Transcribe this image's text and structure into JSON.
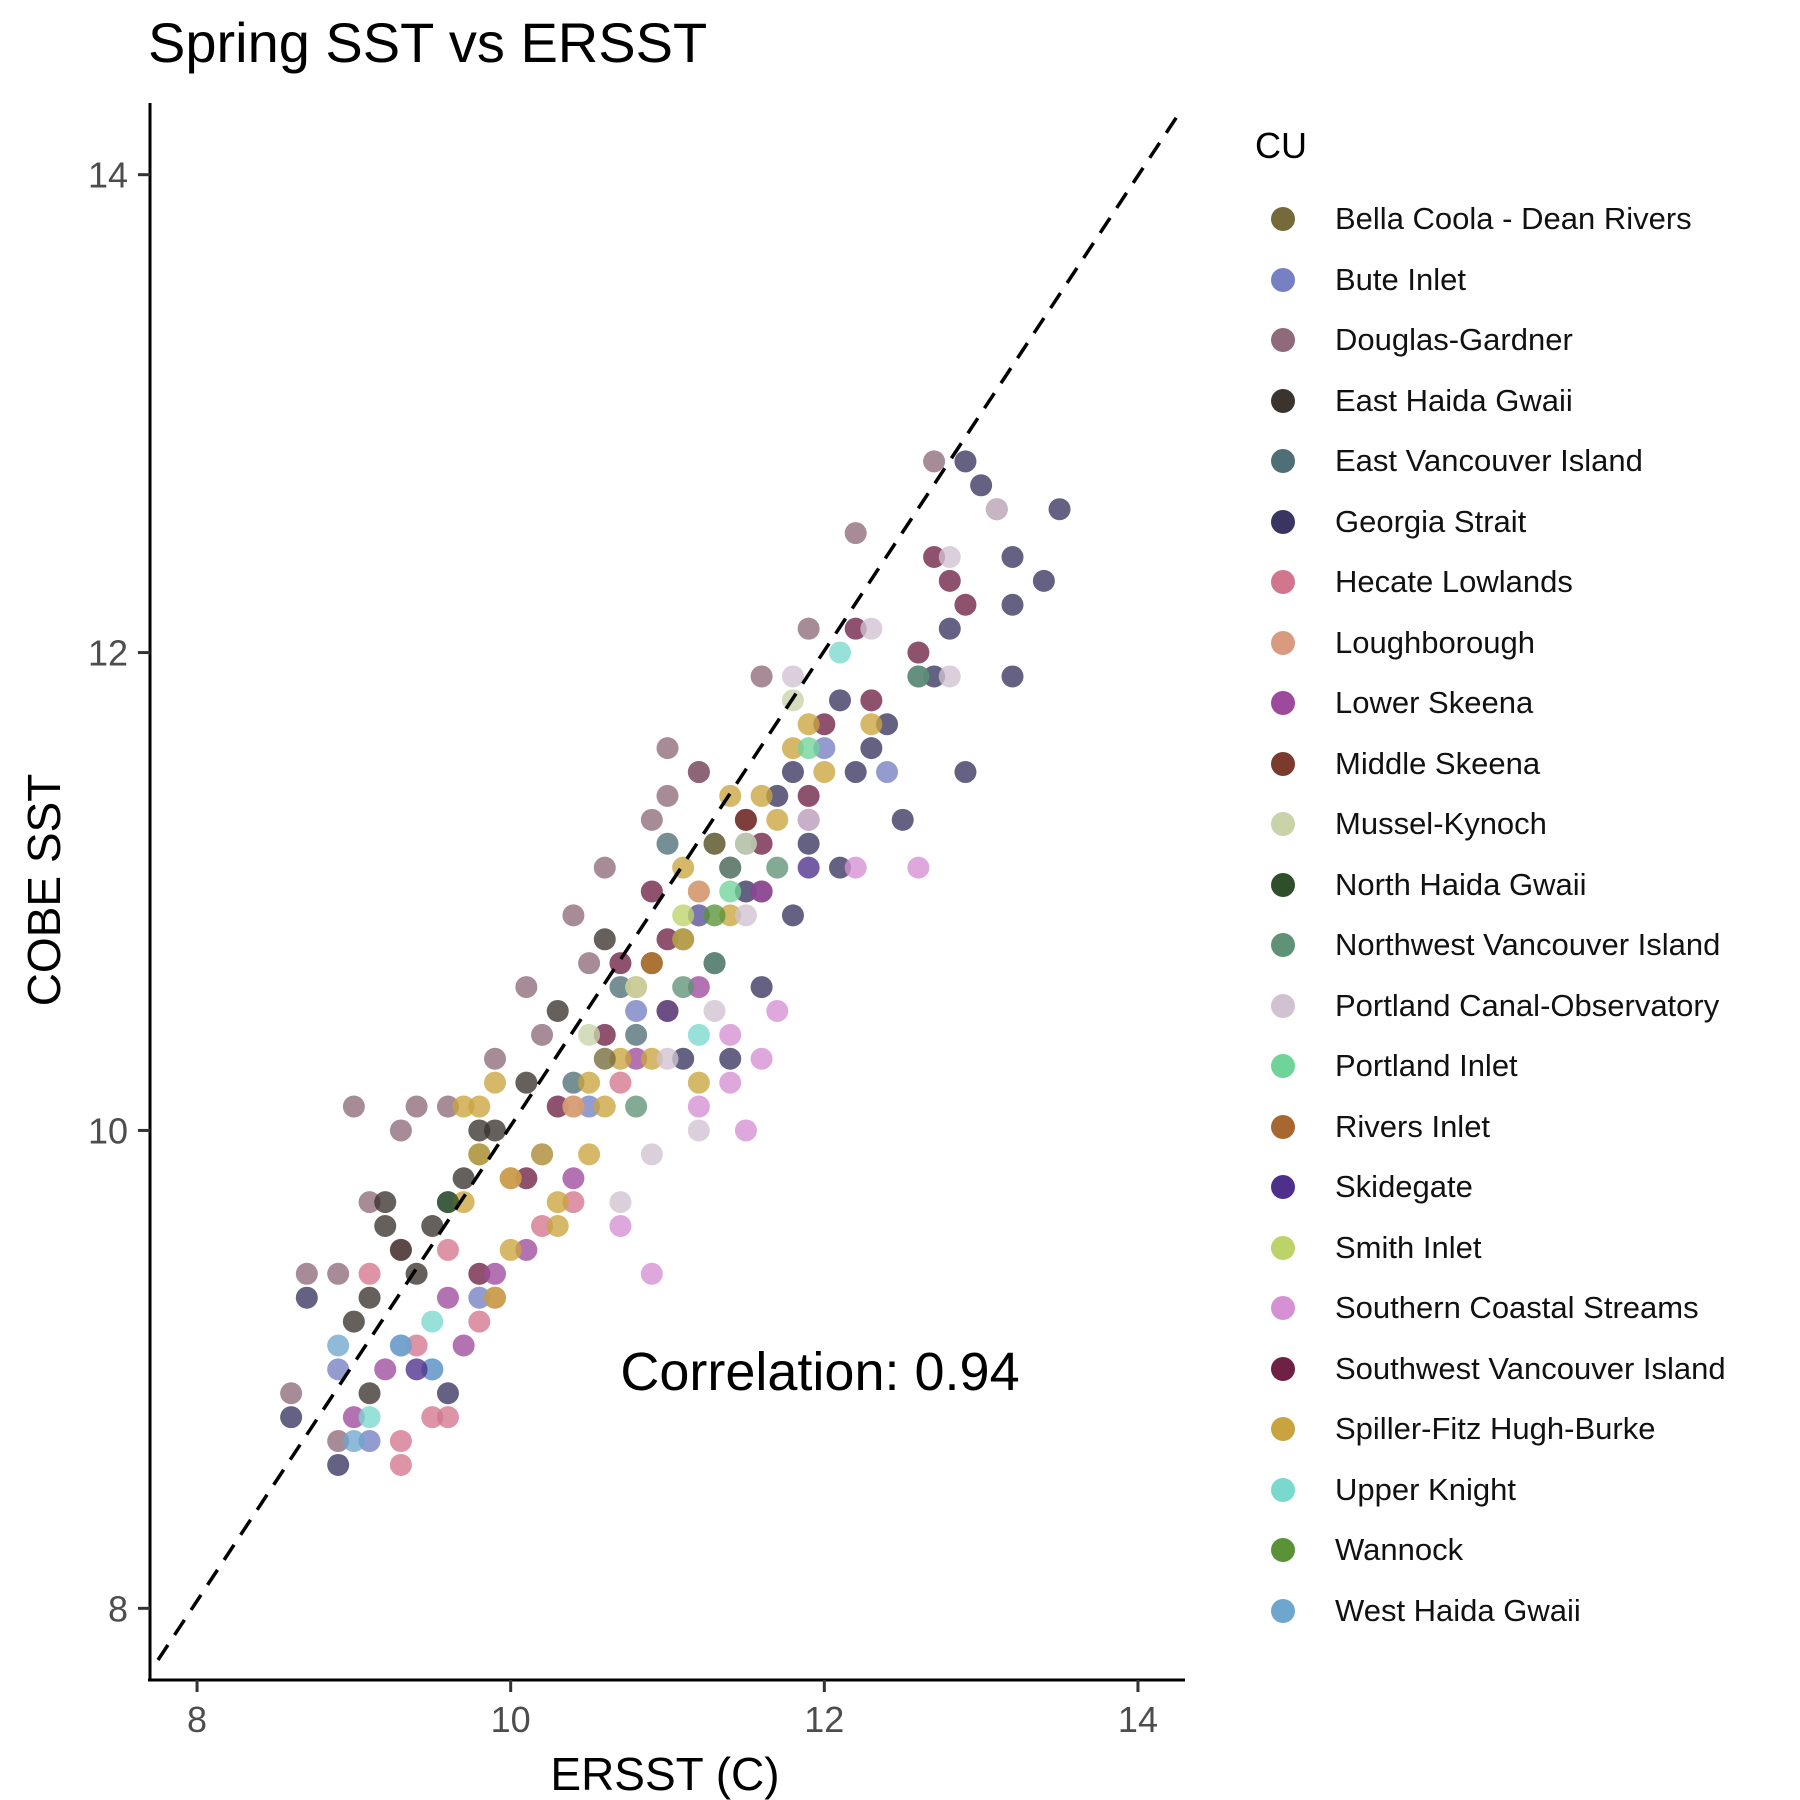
{
  "title": "Spring SST vs ERSST",
  "annotation": "Correlation: 0.94",
  "legend": {
    "title": "CU",
    "items": [
      {
        "label": "Bella Coola - Dean Rivers",
        "color": "#756a3a"
      },
      {
        "label": "Bute Inlet",
        "color": "#7680c2"
      },
      {
        "label": "Douglas-Gardner",
        "color": "#8e6a7a"
      },
      {
        "label": "East Haida Gwaii",
        "color": "#3a332e"
      },
      {
        "label": "East Vancouver Island",
        "color": "#4e6f76"
      },
      {
        "label": "Georgia Strait",
        "color": "#393560"
      },
      {
        "label": "Hecate Lowlands",
        "color": "#d2768d"
      },
      {
        "label": "Loughborough",
        "color": "#d89b7f"
      },
      {
        "label": "Lower Skeena",
        "color": "#9e4a9c"
      },
      {
        "label": "Middle Skeena",
        "color": "#7a3a2e"
      },
      {
        "label": "Mussel-Kynoch",
        "color": "#c8d3a8"
      },
      {
        "label": "North Haida Gwaii",
        "color": "#2f4f2b"
      },
      {
        "label": "Northwest Vancouver Island",
        "color": "#5f9277"
      },
      {
        "label": "Portland Canal-Observatory",
        "color": "#d0c2d0"
      },
      {
        "label": "Portland Inlet",
        "color": "#6fd49a"
      },
      {
        "label": "Rivers Inlet",
        "color": "#a8672f"
      },
      {
        "label": "Skidegate",
        "color": "#4e2f8c"
      },
      {
        "label": "Smith Inlet",
        "color": "#bcd36a"
      },
      {
        "label": "Southern Coastal Streams",
        "color": "#d690d4"
      },
      {
        "label": "Southwest Vancouver Island",
        "color": "#6e2145"
      },
      {
        "label": "Spiller-Fitz Hugh-Burke",
        "color": "#c9a43e"
      },
      {
        "label": "Upper Knight",
        "color": "#7ad9cd"
      },
      {
        "label": "Wannock",
        "color": "#5a9337"
      },
      {
        "label": "West Haida Gwaii",
        "color": "#6fa6cd"
      }
    ]
  },
  "chart_data": {
    "type": "scatter",
    "title": "Spring SST vs ERSST",
    "xlabel": "ERSST (C)",
    "ylabel": "COBE SST",
    "xlim": [
      7.7,
      14.3
    ],
    "ylim": [
      7.7,
      14.3
    ],
    "xticks": [
      8,
      10,
      12,
      14
    ],
    "yticks": [
      8,
      10,
      12,
      14
    ],
    "grid": false,
    "legend_position": "right",
    "reference_line": {
      "type": "identity",
      "style": "dashed",
      "color": "#000000"
    },
    "annotation": "Correlation: 0.94",
    "correlation": 0.94,
    "series": [
      {
        "name": "Georgia Strait",
        "color": "#393560",
        "points": [
          [
            12.9,
            12.8
          ],
          [
            13.0,
            12.7
          ],
          [
            13.5,
            12.6
          ],
          [
            13.2,
            12.4
          ],
          [
            13.4,
            12.3
          ],
          [
            12.8,
            12.1
          ],
          [
            13.2,
            11.9
          ],
          [
            12.4,
            11.7
          ],
          [
            12.9,
            11.5
          ],
          [
            12.5,
            11.3
          ],
          [
            12.1,
            11.1
          ],
          [
            11.8,
            10.9
          ],
          [
            11.6,
            10.6
          ],
          [
            11.4,
            10.3
          ],
          [
            12.1,
            11.8
          ],
          [
            12.3,
            11.6
          ],
          [
            11.9,
            11.2
          ],
          [
            11.6,
            11.0
          ],
          [
            11.3,
            10.7
          ],
          [
            11.1,
            10.3
          ],
          [
            8.7,
            9.3
          ],
          [
            8.6,
            8.8
          ],
          [
            8.9,
            8.6
          ],
          [
            9.6,
            8.9
          ],
          [
            13.2,
            12.2
          ],
          [
            12.7,
            11.9
          ],
          [
            12.2,
            11.5
          ],
          [
            11.7,
            11.4
          ],
          [
            11.5,
            11.0
          ],
          [
            11.8,
            11.5
          ]
        ]
      },
      {
        "name": "Southwest Vancouver Island",
        "color": "#6e2145",
        "points": [
          [
            12.7,
            12.4
          ],
          [
            12.9,
            12.2
          ],
          [
            12.6,
            12.0
          ],
          [
            12.3,
            11.8
          ],
          [
            12.0,
            11.7
          ],
          [
            11.9,
            11.4
          ],
          [
            11.6,
            11.2
          ],
          [
            11.4,
            11.1
          ],
          [
            11.2,
            10.9
          ],
          [
            11.0,
            10.8
          ],
          [
            10.6,
            10.4
          ],
          [
            10.3,
            10.1
          ],
          [
            10.1,
            9.8
          ],
          [
            12.2,
            12.1
          ],
          [
            12.8,
            12.3
          ],
          [
            11.5,
            11.3
          ],
          [
            11.2,
            11.5
          ],
          [
            10.9,
            11.0
          ],
          [
            10.7,
            10.7
          ],
          [
            9.8,
            9.4
          ]
        ]
      },
      {
        "name": "Douglas-Gardner",
        "color": "#8e6a7a",
        "points": [
          [
            12.7,
            12.8
          ],
          [
            12.2,
            12.5
          ],
          [
            11.9,
            12.1
          ],
          [
            11.6,
            11.9
          ],
          [
            11.2,
            11.5
          ],
          [
            10.9,
            11.3
          ],
          [
            10.6,
            11.1
          ],
          [
            10.4,
            10.9
          ],
          [
            10.1,
            10.6
          ],
          [
            9.9,
            10.3
          ],
          [
            9.6,
            10.1
          ],
          [
            9.3,
            10.0
          ],
          [
            9.1,
            9.7
          ],
          [
            8.9,
            9.4
          ],
          [
            8.7,
            9.4
          ],
          [
            8.6,
            8.9
          ],
          [
            8.9,
            8.7
          ],
          [
            11.0,
            11.6
          ],
          [
            11.0,
            11.4
          ],
          [
            10.5,
            10.7
          ],
          [
            10.2,
            10.4
          ],
          [
            9.0,
            10.1
          ],
          [
            9.4,
            10.1
          ],
          [
            13.1,
            12.6
          ]
        ]
      },
      {
        "name": "Hecate Lowlands",
        "color": "#d2768d",
        "points": [
          [
            9.3,
            9.5
          ],
          [
            9.1,
            9.4
          ],
          [
            9.6,
            9.5
          ],
          [
            9.8,
            9.2
          ],
          [
            9.4,
            9.1
          ],
          [
            9.5,
            8.8
          ],
          [
            9.3,
            8.7
          ],
          [
            9.3,
            8.6
          ],
          [
            9.6,
            8.8
          ],
          [
            9.9,
            9.3
          ],
          [
            10.2,
            9.6
          ],
          [
            10.4,
            9.7
          ],
          [
            10.7,
            10.2
          ],
          [
            10.0,
            9.8
          ]
        ]
      },
      {
        "name": "Lower Skeena",
        "color": "#9e4a9c",
        "points": [
          [
            9.9,
            9.4
          ],
          [
            9.7,
            9.1
          ],
          [
            9.2,
            9.0
          ],
          [
            9.0,
            8.8
          ],
          [
            9.6,
            9.3
          ],
          [
            10.1,
            9.5
          ],
          [
            10.4,
            9.8
          ],
          [
            10.8,
            10.3
          ],
          [
            11.2,
            10.6
          ],
          [
            11.6,
            11.0
          ],
          [
            11.9,
            11.3
          ]
        ]
      },
      {
        "name": "East Haida Gwaii",
        "color": "#3a332e",
        "points": [
          [
            9.2,
            9.7
          ],
          [
            9.1,
            9.3
          ],
          [
            9.0,
            9.2
          ],
          [
            9.3,
            9.5
          ],
          [
            9.5,
            9.6
          ],
          [
            9.7,
            9.8
          ],
          [
            9.9,
            10.0
          ],
          [
            10.1,
            10.2
          ],
          [
            10.3,
            10.5
          ],
          [
            10.6,
            10.8
          ],
          [
            9.1,
            8.9
          ],
          [
            9.2,
            9.6
          ],
          [
            9.4,
            9.4
          ],
          [
            9.8,
            10.0
          ]
        ]
      },
      {
        "name": "East Vancouver Island",
        "color": "#4e6f76",
        "points": [
          [
            11.0,
            11.2
          ],
          [
            10.7,
            10.6
          ],
          [
            10.9,
            10.7
          ],
          [
            11.1,
            10.8
          ],
          [
            11.3,
            11.2
          ],
          [
            10.8,
            10.4
          ],
          [
            10.4,
            10.2
          ],
          [
            9.8,
            9.9
          ],
          [
            9.6,
            9.7
          ],
          [
            12.6,
            11.9
          ]
        ]
      },
      {
        "name": "Bute Inlet",
        "color": "#7680c2",
        "points": [
          [
            8.9,
            9.0
          ],
          [
            9.1,
            8.7
          ],
          [
            9.3,
            9.1
          ],
          [
            9.5,
            9.0
          ],
          [
            9.8,
            9.3
          ],
          [
            10.2,
            9.9
          ],
          [
            10.5,
            10.1
          ],
          [
            10.8,
            10.5
          ],
          [
            11.2,
            10.9
          ],
          [
            11.5,
            11.2
          ],
          [
            12.0,
            11.6
          ],
          [
            12.4,
            11.5
          ]
        ]
      },
      {
        "name": "Spiller-Fitz Hugh-Burke",
        "color": "#c9a43e",
        "points": [
          [
            11.9,
            11.7
          ],
          [
            11.8,
            11.6
          ],
          [
            12.3,
            11.7
          ],
          [
            12.0,
            11.5
          ],
          [
            11.7,
            11.3
          ],
          [
            11.4,
            11.4
          ],
          [
            11.2,
            11.0
          ],
          [
            11.4,
            10.9
          ],
          [
            11.1,
            10.8
          ],
          [
            10.9,
            10.7
          ],
          [
            11.0,
            10.5
          ],
          [
            10.9,
            10.3
          ],
          [
            10.7,
            10.3
          ],
          [
            10.6,
            10.1
          ],
          [
            10.4,
            10.1
          ],
          [
            10.2,
            9.9
          ],
          [
            10.0,
            9.8
          ],
          [
            9.8,
            9.9
          ],
          [
            9.7,
            9.7
          ],
          [
            9.9,
            10.2
          ],
          [
            9.7,
            10.1
          ],
          [
            9.9,
            9.3
          ],
          [
            10.0,
            9.5
          ],
          [
            10.3,
            9.7
          ],
          [
            10.5,
            9.9
          ],
          [
            10.8,
            10.6
          ],
          [
            11.1,
            11.1
          ],
          [
            11.6,
            11.4
          ],
          [
            10.3,
            9.6
          ],
          [
            11.2,
            10.2
          ],
          [
            10.5,
            10.2
          ],
          [
            9.8,
            10.1
          ]
        ]
      },
      {
        "name": "Portland Canal-Observatory",
        "color": "#d0c2d0",
        "points": [
          [
            11.8,
            11.9
          ],
          [
            12.3,
            12.1
          ],
          [
            11.9,
            11.3
          ],
          [
            11.5,
            10.9
          ],
          [
            11.3,
            10.5
          ],
          [
            11.0,
            10.3
          ],
          [
            10.9,
            9.9
          ],
          [
            10.7,
            9.7
          ],
          [
            11.2,
            10.0
          ],
          [
            12.8,
            12.4
          ],
          [
            13.1,
            12.6
          ],
          [
            12.8,
            11.9
          ]
        ]
      },
      {
        "name": "Southern Coastal Streams",
        "color": "#d690d4",
        "points": [
          [
            11.7,
            10.5
          ],
          [
            11.6,
            10.3
          ],
          [
            11.5,
            10.0
          ],
          [
            10.9,
            9.4
          ],
          [
            10.7,
            9.6
          ],
          [
            11.4,
            10.2
          ],
          [
            12.2,
            11.1
          ],
          [
            12.6,
            11.1
          ],
          [
            11.2,
            10.1
          ],
          [
            11.4,
            10.4
          ]
        ]
      },
      {
        "name": "Northwest Vancouver Island",
        "color": "#5f9277",
        "points": [
          [
            12.6,
            11.9
          ],
          [
            11.4,
            11.1
          ],
          [
            11.1,
            10.6
          ],
          [
            10.8,
            10.1
          ],
          [
            11.3,
            10.7
          ],
          [
            11.7,
            11.1
          ]
        ]
      },
      {
        "name": "Upper Knight",
        "color": "#7ad9cd",
        "points": [
          [
            12.1,
            12.0
          ],
          [
            11.2,
            10.4
          ],
          [
            9.5,
            9.2
          ],
          [
            9.1,
            8.8
          ]
        ]
      },
      {
        "name": "West Haida Gwaii",
        "color": "#6fa6cd",
        "points": [
          [
            9.0,
            8.7
          ],
          [
            8.9,
            9.1
          ],
          [
            9.5,
            9.0
          ],
          [
            9.3,
            9.1
          ]
        ]
      },
      {
        "name": "Mussel-Kynoch",
        "color": "#c8d3a8",
        "points": [
          [
            11.8,
            11.8
          ],
          [
            11.5,
            11.2
          ],
          [
            10.8,
            10.6
          ],
          [
            10.5,
            10.4
          ]
        ]
      },
      {
        "name": "Portland Inlet",
        "color": "#6fd49a",
        "points": [
          [
            11.9,
            11.6
          ],
          [
            11.4,
            11.0
          ]
        ]
      },
      {
        "name": "Skidegate",
        "color": "#4e2f8c",
        "points": [
          [
            11.9,
            11.1
          ],
          [
            11.0,
            10.5
          ],
          [
            9.4,
            9.0
          ]
        ]
      },
      {
        "name": "Loughborough",
        "color": "#d89b7f",
        "points": [
          [
            10.4,
            10.1
          ],
          [
            11.2,
            11.0
          ]
        ]
      },
      {
        "name": "Bella Coola - Dean Rivers",
        "color": "#756a3a",
        "points": [
          [
            10.6,
            10.3
          ],
          [
            11.3,
            11.2
          ]
        ]
      },
      {
        "name": "Rivers Inlet",
        "color": "#a8672f",
        "points": [
          [
            10.9,
            10.7
          ]
        ]
      },
      {
        "name": "Smith Inlet",
        "color": "#bcd36a",
        "points": [
          [
            11.1,
            10.9
          ]
        ]
      },
      {
        "name": "Middle Skeena",
        "color": "#7a3a2e",
        "points": [
          [
            11.5,
            11.3
          ]
        ]
      },
      {
        "name": "North Haida Gwaii",
        "color": "#2f4f2b",
        "points": [
          [
            9.6,
            9.7
          ]
        ]
      },
      {
        "name": "Wannock",
        "color": "#5a9337",
        "points": [
          [
            11.3,
            10.9
          ]
        ]
      }
    ]
  }
}
